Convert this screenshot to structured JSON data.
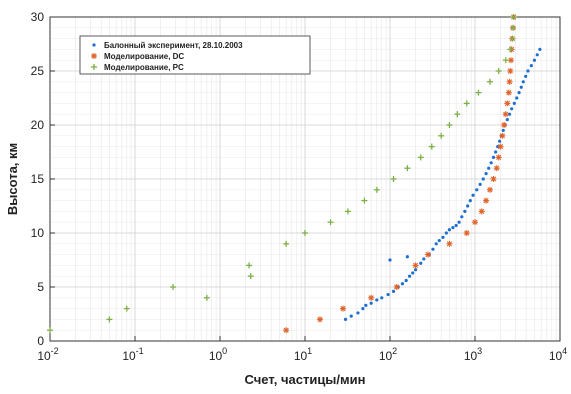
{
  "chart_data": {
    "type": "scatter",
    "title": "",
    "xlabel": "Счет, частицы/мин",
    "ylabel": "Высота, км",
    "xscale": "log",
    "xlim": [
      0.01,
      10000
    ],
    "ylim": [
      0,
      30
    ],
    "grid": true,
    "legend_position": "top-left",
    "x_ticks": [
      {
        "value": 0.01,
        "base": "10",
        "exp": "-2"
      },
      {
        "value": 0.1,
        "base": "10",
        "exp": "-1"
      },
      {
        "value": 1,
        "base": "10",
        "exp": "0"
      },
      {
        "value": 10,
        "base": "10",
        "exp": "1"
      },
      {
        "value": 100,
        "base": "10",
        "exp": "2"
      },
      {
        "value": 1000,
        "base": "10",
        "exp": "3"
      },
      {
        "value": 10000,
        "base": "10",
        "exp": "4"
      }
    ],
    "y_ticks": [
      0,
      5,
      10,
      15,
      20,
      25,
      30
    ],
    "series": [
      {
        "name": "Балонный эксперимент, 28.10.2003",
        "color": "#1f6fd1",
        "marker": "dot",
        "points": [
          [
            30,
            2.0
          ],
          [
            35,
            2.3
          ],
          [
            42,
            2.6
          ],
          [
            48,
            3.0
          ],
          [
            52,
            3.3
          ],
          [
            60,
            3.5
          ],
          [
            70,
            3.8
          ],
          [
            80,
            4.0
          ],
          [
            95,
            4.3
          ],
          [
            110,
            4.6
          ],
          [
            125,
            5.0
          ],
          [
            140,
            5.3
          ],
          [
            155,
            5.6
          ],
          [
            170,
            6.0
          ],
          [
            185,
            6.3
          ],
          [
            200,
            6.6
          ],
          [
            230,
            7.2
          ],
          [
            250,
            7.6
          ],
          [
            100,
            7.5
          ],
          [
            160,
            7.8
          ],
          [
            290,
            8.0
          ],
          [
            320,
            8.5
          ],
          [
            350,
            9.0
          ],
          [
            380,
            9.3
          ],
          [
            420,
            9.6
          ],
          [
            460,
            10.0
          ],
          [
            500,
            10.3
          ],
          [
            550,
            10.5
          ],
          [
            600,
            10.7
          ],
          [
            650,
            11.0
          ],
          [
            700,
            11.5
          ],
          [
            760,
            12.0
          ],
          [
            820,
            12.5
          ],
          [
            880,
            13.0
          ],
          [
            950,
            13.5
          ],
          [
            1050,
            14.0
          ],
          [
            1150,
            14.5
          ],
          [
            1250,
            15.0
          ],
          [
            1350,
            15.5
          ],
          [
            1450,
            16.0
          ],
          [
            1550,
            16.5
          ],
          [
            1650,
            17.0
          ],
          [
            1750,
            17.5
          ],
          [
            1850,
            18.0
          ],
          [
            1950,
            18.5
          ],
          [
            2050,
            19.0
          ],
          [
            2150,
            19.5
          ],
          [
            2250,
            20.0
          ],
          [
            2400,
            20.5
          ],
          [
            2550,
            21.0
          ],
          [
            2700,
            21.5
          ],
          [
            2900,
            22.0
          ],
          [
            3100,
            22.5
          ],
          [
            3300,
            23.0
          ],
          [
            3500,
            23.5
          ],
          [
            3700,
            24.0
          ],
          [
            3950,
            24.5
          ],
          [
            4200,
            25.0
          ],
          [
            4600,
            25.5
          ],
          [
            5000,
            26.0
          ],
          [
            5400,
            26.5
          ],
          [
            5800,
            27.0
          ]
        ]
      },
      {
        "name": "Моделирование, DC",
        "color": "#e0632a",
        "marker": "star",
        "points": [
          [
            6,
            1
          ],
          [
            15,
            2
          ],
          [
            28,
            3
          ],
          [
            60,
            4
          ],
          [
            120,
            5
          ],
          [
            200,
            7
          ],
          [
            280,
            8
          ],
          [
            500,
            9
          ],
          [
            800,
            10
          ],
          [
            1000,
            11
          ],
          [
            1200,
            12
          ],
          [
            1350,
            13
          ],
          [
            1500,
            14
          ],
          [
            1650,
            15
          ],
          [
            1800,
            16
          ],
          [
            1900,
            17
          ],
          [
            2000,
            18
          ],
          [
            2100,
            19
          ],
          [
            2200,
            20
          ],
          [
            2300,
            21
          ],
          [
            2400,
            22
          ],
          [
            2500,
            23
          ],
          [
            2550,
            24
          ],
          [
            2600,
            25
          ],
          [
            2650,
            26
          ],
          [
            2700,
            27
          ],
          [
            2750,
            28
          ],
          [
            2800,
            29
          ],
          [
            2850,
            30
          ]
        ]
      },
      {
        "name": "Моделирование, PC",
        "color": "#7db046",
        "marker": "plus",
        "points": [
          [
            0.01,
            1
          ],
          [
            0.05,
            2
          ],
          [
            0.08,
            3
          ],
          [
            0.28,
            5
          ],
          [
            0.7,
            4
          ],
          [
            2.3,
            6
          ],
          [
            2.2,
            7
          ],
          [
            6,
            9
          ],
          [
            10,
            10
          ],
          [
            20,
            11
          ],
          [
            32,
            12
          ],
          [
            50,
            13
          ],
          [
            70,
            14
          ],
          [
            110,
            15
          ],
          [
            160,
            16
          ],
          [
            230,
            17
          ],
          [
            310,
            18
          ],
          [
            400,
            19
          ],
          [
            500,
            20
          ],
          [
            620,
            21
          ],
          [
            800,
            22
          ],
          [
            1100,
            23
          ],
          [
            1500,
            24
          ],
          [
            1900,
            25
          ],
          [
            2300,
            26
          ],
          [
            2600,
            27
          ],
          [
            2750,
            28
          ],
          [
            2800,
            29
          ],
          [
            2850,
            30
          ]
        ]
      }
    ]
  }
}
